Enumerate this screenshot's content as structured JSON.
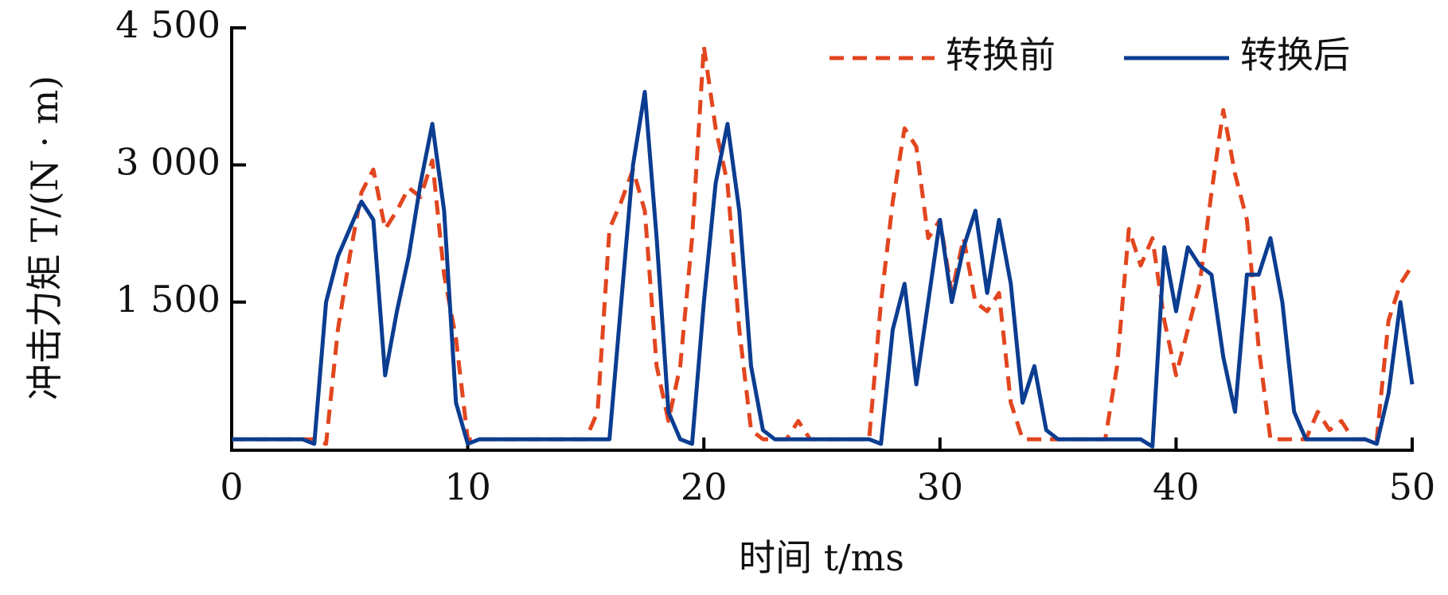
{
  "chart_data": {
    "type": "line",
    "x_label": "时间 t/ms",
    "y_label": "冲击力矩 T/(N · m)",
    "x": [
      0,
      0.5,
      1,
      1.5,
      2,
      2.5,
      3,
      3.5,
      4,
      4.5,
      5,
      5.5,
      6,
      6.5,
      7,
      7.5,
      8,
      8.5,
      9,
      9.5,
      10,
      10.5,
      11,
      11.5,
      12,
      12.5,
      13,
      13.5,
      14,
      14.5,
      15,
      15.5,
      16,
      16.5,
      17,
      17.5,
      18,
      18.5,
      19,
      19.5,
      20,
      20.5,
      21,
      21.5,
      22,
      22.5,
      23,
      23.5,
      24,
      24.5,
      25,
      25.5,
      26,
      26.5,
      27,
      27.5,
      28,
      28.5,
      29,
      29.5,
      30,
      30.5,
      31,
      31.5,
      32,
      32.5,
      33,
      33.5,
      34,
      34.5,
      35,
      35.5,
      36,
      36.5,
      37,
      37.5,
      38,
      38.5,
      39,
      39.5,
      40,
      40.5,
      41,
      41.5,
      42,
      42.5,
      43,
      43.5,
      44,
      44.5,
      45,
      45.5,
      46,
      46.5,
      47,
      47.5,
      48,
      48.5,
      49,
      49.5,
      50
    ],
    "series": [
      {
        "name": "转换前",
        "color": "#e2461f",
        "dash": true,
        "values": [
          0,
          0,
          0,
          0,
          0,
          0,
          0,
          0,
          -50,
          1200,
          2000,
          2700,
          2950,
          2300,
          2500,
          2750,
          2650,
          3050,
          1800,
          1100,
          0,
          0,
          0,
          0,
          0,
          0,
          0,
          0,
          0,
          0,
          0,
          300,
          2300,
          2600,
          2950,
          2500,
          800,
          200,
          800,
          2200,
          4300,
          3400,
          2800,
          1200,
          100,
          0,
          0,
          0,
          200,
          0,
          0,
          0,
          0,
          0,
          0,
          1500,
          2600,
          3400,
          3200,
          2200,
          2400,
          1600,
          2200,
          1500,
          1400,
          1600,
          400,
          0,
          0,
          0,
          0,
          0,
          0,
          0,
          0,
          800,
          2300,
          1900,
          2200,
          1300,
          700,
          1200,
          1700,
          2700,
          3600,
          2900,
          2400,
          1000,
          0,
          0,
          0,
          0,
          300,
          100,
          200,
          0,
          0,
          0,
          1300,
          1700,
          1900
        ]
      },
      {
        "name": "转换后",
        "color": "#0b3d91",
        "dash": false,
        "values": [
          0,
          0,
          0,
          0,
          0,
          0,
          0,
          -50,
          1500,
          2000,
          2300,
          2600,
          2400,
          700,
          1400,
          2000,
          2800,
          3450,
          2500,
          400,
          -50,
          0,
          0,
          0,
          0,
          0,
          0,
          0,
          0,
          0,
          0,
          0,
          0,
          1500,
          3000,
          3800,
          2200,
          300,
          0,
          -50,
          1500,
          2800,
          3450,
          2500,
          800,
          100,
          0,
          0,
          0,
          0,
          0,
          0,
          0,
          0,
          0,
          -50,
          1200,
          1700,
          600,
          1500,
          2400,
          1500,
          2100,
          2500,
          1600,
          2400,
          1700,
          400,
          800,
          100,
          0,
          0,
          0,
          0,
          0,
          0,
          0,
          0,
          -80,
          2100,
          1400,
          2100,
          1900,
          1800,
          900,
          300,
          1800,
          1800,
          2200,
          1500,
          300,
          0,
          0,
          0,
          0,
          0,
          0,
          -50,
          500,
          1500,
          600
        ]
      }
    ],
    "xlim": [
      0,
      50
    ],
    "xticks": [
      0,
      10,
      20,
      30,
      40,
      50
    ],
    "ylim": [
      -120,
      4500
    ],
    "yticks": [
      {
        "value": 1500,
        "label": "1 500"
      },
      {
        "value": 3000,
        "label": "3 000"
      },
      {
        "value": 4500,
        "label": "4 500"
      }
    ],
    "legend": "top-right"
  }
}
